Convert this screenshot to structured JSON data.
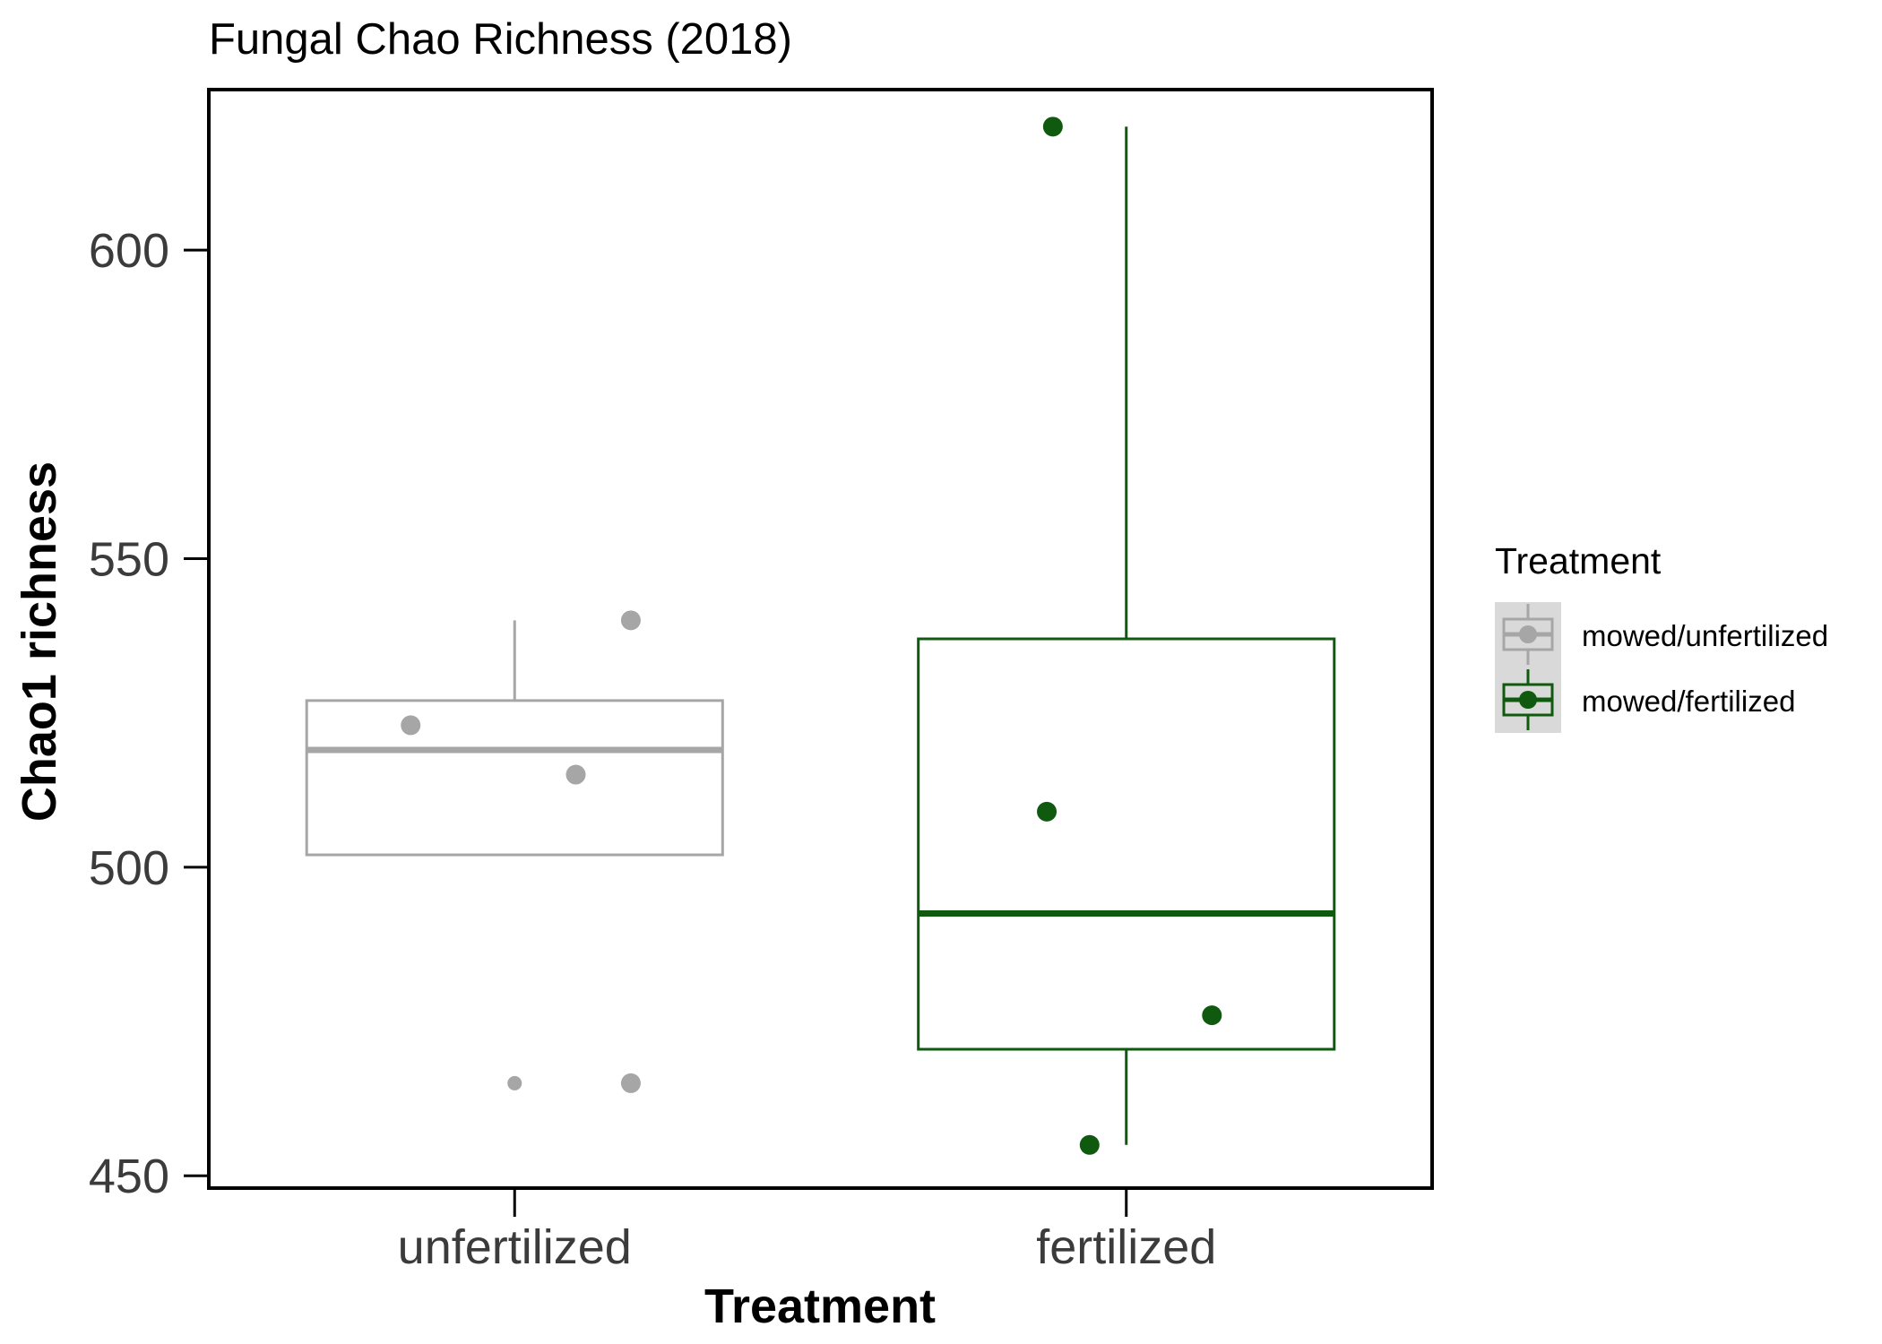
{
  "chart_data": {
    "type": "box",
    "title": "Fungal Chao Richness (2018)",
    "xlabel": "Treatment",
    "ylabel": "Chao1 richness",
    "categories": [
      "unfertilized",
      "fertilized"
    ],
    "ylim": [
      448,
      626
    ],
    "yticks": [
      450,
      500,
      550,
      600
    ],
    "grid": false,
    "legend": {
      "title": "Treatment",
      "placement": "right",
      "entries": [
        "mowed/unfertilized",
        "mowed/fertilized"
      ]
    },
    "series": [
      {
        "name": "mowed/unfertilized",
        "category": "unfertilized",
        "color": "#a6a6a6",
        "box": {
          "whisker_low": 502,
          "q1": 502,
          "median": 519,
          "q3": 527,
          "whisker_high": 540
        },
        "outliers": [
          465
        ],
        "points": [
          {
            "x_offset": 0.19,
            "y": 540
          },
          {
            "x_offset": -0.17,
            "y": 523
          },
          {
            "x_offset": 0.1,
            "y": 515
          },
          {
            "x_offset": 0.19,
            "y": 465
          }
        ]
      },
      {
        "name": "mowed/fertilized",
        "category": "fertilized",
        "color": "#0f5a0f",
        "box": {
          "whisker_low": 455,
          "q1": 470.5,
          "median": 492.5,
          "q3": 537,
          "whisker_high": 620
        },
        "outliers": [],
        "points": [
          {
            "x_offset": -0.12,
            "y": 620
          },
          {
            "x_offset": -0.13,
            "y": 509
          },
          {
            "x_offset": 0.14,
            "y": 476
          },
          {
            "x_offset": -0.06,
            "y": 455
          }
        ]
      }
    ]
  }
}
